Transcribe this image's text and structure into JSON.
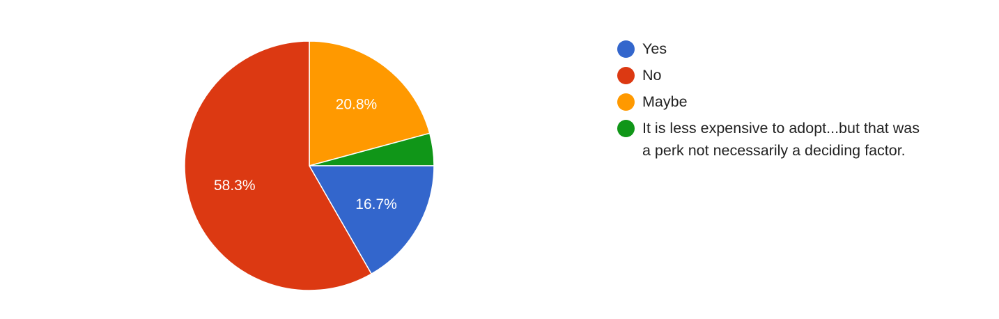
{
  "chart_data": {
    "type": "pie",
    "slices": [
      {
        "label": "Yes",
        "value": 16.7,
        "display": "16.7%",
        "color": "#3366cc"
      },
      {
        "label": "No",
        "value": 58.3,
        "display": "58.3%",
        "color": "#dc3912"
      },
      {
        "label": "Maybe",
        "value": 20.8,
        "display": "20.8%",
        "color": "#ff9900"
      },
      {
        "label": "It is less expensive to adopt...but that was a perk not necessarily a deciding factor.",
        "value": 4.2,
        "display": "",
        "color": "#109618"
      }
    ],
    "slice_order": "clockwise from 12 o'clock: Maybe, It is less expensive to adopt..., Yes, No",
    "legend_position": "right"
  }
}
